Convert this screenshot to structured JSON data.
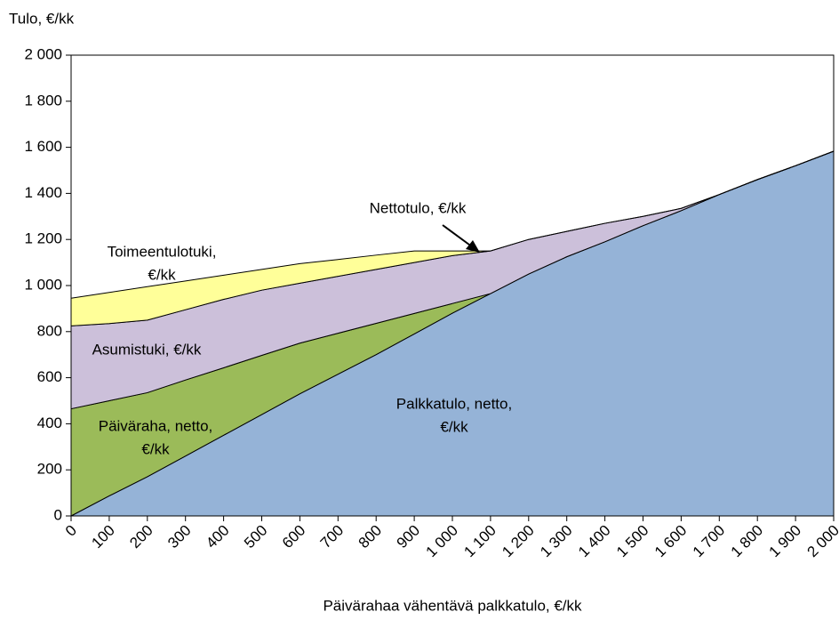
{
  "chart_data": {
    "type": "stacked_area",
    "y_label": "Tulo, €/kk",
    "x_label": "Päivärahaa vähentävä palkkatulo, €/kk",
    "x": [
      0,
      100,
      200,
      300,
      400,
      500,
      600,
      700,
      800,
      900,
      1000,
      1100,
      1200,
      1300,
      1400,
      1500,
      1600,
      1700,
      1800,
      1900,
      2000
    ],
    "series": [
      {
        "name": "Palkkatulo, netto, €/kk",
        "color": "#95b3d7",
        "values": [
          0,
          87,
          170,
          260,
          350,
          440,
          530,
          615,
          700,
          790,
          880,
          965,
          1050,
          1125,
          1190,
          1260,
          1325,
          1395,
          1460,
          1520,
          1583
        ]
      },
      {
        "name": "Päiväraha, netto, €/kk",
        "color": "#9bbb59",
        "values": [
          465,
          413,
          365,
          330,
          293,
          257,
          220,
          178,
          136,
          89,
          42,
          0,
          0,
          0,
          0,
          0,
          0,
          0,
          0,
          0,
          0
        ]
      },
      {
        "name": "Asumistuki, €/kk",
        "color": "#ccc0da",
        "values": [
          360,
          335,
          315,
          305,
          297,
          283,
          260,
          247,
          234,
          221,
          208,
          185,
          150,
          110,
          80,
          40,
          10,
          0,
          0,
          0,
          0
        ]
      },
      {
        "name": "Toimeentulotuki, €/kk",
        "color": "#ffff99",
        "values": [
          120,
          135,
          145,
          125,
          105,
          90,
          85,
          73,
          62,
          50,
          20,
          0,
          0,
          0,
          0,
          0,
          0,
          0,
          0,
          0,
          0
        ]
      }
    ],
    "area_labels": [
      {
        "lines": [
          "Palkkatulo, netto,",
          "€/kk"
        ]
      },
      {
        "lines": [
          "Päiväraha, netto,",
          "€/kk"
        ]
      },
      {
        "lines": [
          "Asumistuki, €/kk"
        ]
      },
      {
        "lines": [
          "Toimeentulotuki,",
          "€/kk"
        ]
      }
    ],
    "annotation": "Nettotulo, €/kk",
    "xlim": [
      0,
      2000
    ],
    "ylim": [
      0,
      2000
    ],
    "xticks": [
      0,
      100,
      200,
      300,
      400,
      500,
      600,
      700,
      800,
      900,
      {
        "value": 1000,
        "label": "1 000"
      },
      {
        "value": 1100,
        "label": "1 100"
      },
      {
        "value": 1200,
        "label": "1 200"
      },
      {
        "value": 1300,
        "label": "1 300"
      },
      {
        "value": 1400,
        "label": "1 400"
      },
      {
        "value": 1500,
        "label": "1 500"
      },
      {
        "value": 1600,
        "label": "1 600"
      },
      {
        "value": 1700,
        "label": "1 700"
      },
      {
        "value": 1800,
        "label": "1 800"
      },
      {
        "value": 1900,
        "label": "1 900"
      },
      {
        "value": 2000,
        "label": "2 000"
      }
    ],
    "yticks": [
      0,
      200,
      400,
      600,
      800,
      {
        "value": 1000,
        "label": "1 000"
      },
      {
        "value": 1200,
        "label": "1 200"
      },
      {
        "value": 1400,
        "label": "1 400"
      },
      {
        "value": 1600,
        "label": "1 600"
      },
      {
        "value": 1800,
        "label": "1 800"
      },
      {
        "value": 2000,
        "label": "2 000"
      }
    ],
    "grid": false
  }
}
